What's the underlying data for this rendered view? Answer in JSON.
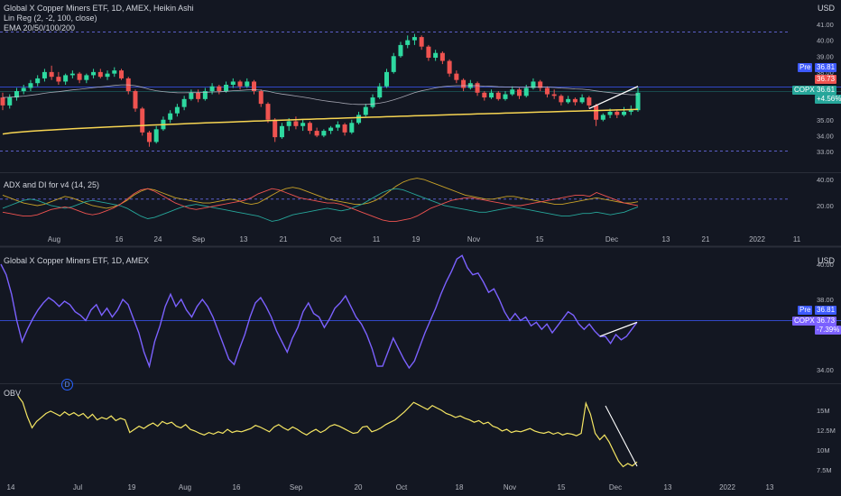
{
  "top": {
    "title": "Global X Copper Miners ETF, 1D, AMEX, Heikin Ashi",
    "indicators": [
      "Lin Reg (2, -2, 100, close)",
      "EMA 20/50/100/200"
    ],
    "currency": "USD",
    "y_ticks": [
      "41.00",
      "40.00",
      "39.00",
      "38.00",
      "37.00",
      "36.00",
      "35.00",
      "34.00",
      "33.00"
    ],
    "x_ticks": [
      "Aug",
      "16",
      "24",
      "Sep",
      "13",
      "21",
      "Oct",
      "11",
      "19",
      "Nov",
      "15",
      "Dec",
      "13",
      "21",
      "2022",
      "11"
    ],
    "tags": {
      "pre_label": "Pre",
      "pre_value": "36.81",
      "last_value": "36.73",
      "ticker": "COPX",
      "ticker_value": "36.61",
      "change": "+4.56%"
    },
    "colors": {
      "up": "#26a69a",
      "up_bright": "#2ed9a0",
      "down": "#ef5350",
      "ema_long": "#f7d552",
      "ema_mid": "#c9c9d6",
      "reg_line": "#ffffff"
    }
  },
  "adx": {
    "label": "ADX and DI for v4 (14, 25)",
    "y_ticks": [
      "40.00",
      "20.00"
    ],
    "colors": {
      "adx": "#c9a227",
      "di_plus": "#26a69a",
      "di_minus": "#ef5350"
    }
  },
  "bottom": {
    "title": "Global X Copper Miners ETF, 1D, AMEX",
    "currency": "USD",
    "y_ticks": [
      "40.00",
      "38.00",
      "36.00",
      "34.00"
    ],
    "tags": {
      "pre_label": "Pre",
      "pre_value": "36.81",
      "ticker": "COPX",
      "ticker_value": "36.73",
      "change": "-7.39%"
    },
    "marker": "D",
    "line_color": "#7b61ff"
  },
  "obv": {
    "label": "OBV",
    "y_ticks": [
      "15M",
      "12.5M",
      "10M",
      "7.5M"
    ],
    "line_color": "#f5e663"
  },
  "bottom_x_ticks": [
    "14",
    "Jul",
    "19",
    "Aug",
    "16",
    "Sep",
    "20",
    "Oct",
    "18",
    "Nov",
    "15",
    "Dec",
    "13",
    "2022",
    "13"
  ],
  "chart_data": [
    {
      "type": "candlestick",
      "title": "Global X Copper Miners ETF, 1D, AMEX, Heikin Ashi",
      "ylim": [
        32.6,
        41.2
      ],
      "candles_ohlc": [
        [
          36.4,
          36.7,
          35.6,
          35.9
        ],
        [
          35.9,
          36.6,
          35.7,
          36.4
        ],
        [
          36.4,
          37.0,
          36.2,
          36.8
        ],
        [
          36.8,
          37.2,
          36.6,
          37.0
        ],
        [
          37.0,
          37.5,
          36.8,
          37.3
        ],
        [
          37.3,
          37.8,
          37.1,
          37.6
        ],
        [
          37.6,
          38.2,
          37.4,
          38.0
        ],
        [
          38.0,
          38.4,
          37.5,
          37.7
        ],
        [
          37.7,
          38.0,
          37.2,
          37.4
        ],
        [
          37.4,
          37.9,
          37.2,
          37.8
        ],
        [
          37.8,
          38.1,
          37.6,
          37.9
        ],
        [
          37.9,
          38.0,
          37.3,
          37.5
        ],
        [
          37.5,
          37.9,
          37.3,
          37.8
        ],
        [
          37.8,
          38.2,
          37.6,
          38.0
        ],
        [
          38.0,
          38.2,
          37.6,
          37.7
        ],
        [
          37.7,
          38.1,
          37.5,
          37.9
        ],
        [
          37.9,
          38.3,
          37.7,
          38.1
        ],
        [
          38.1,
          38.2,
          37.5,
          37.6
        ],
        [
          37.6,
          37.7,
          36.6,
          36.8
        ],
        [
          36.8,
          36.9,
          35.5,
          35.7
        ],
        [
          35.7,
          35.8,
          34.0,
          34.2
        ],
        [
          34.2,
          34.3,
          33.3,
          33.6
        ],
        [
          33.6,
          34.6,
          33.5,
          34.4
        ],
        [
          34.4,
          35.2,
          34.3,
          35.0
        ],
        [
          35.0,
          35.6,
          34.8,
          35.4
        ],
        [
          35.4,
          36.0,
          35.2,
          35.8
        ],
        [
          35.8,
          36.5,
          35.6,
          36.3
        ],
        [
          36.3,
          36.9,
          36.2,
          36.7
        ],
        [
          36.7,
          36.9,
          36.1,
          36.3
        ],
        [
          36.3,
          37.0,
          36.2,
          36.8
        ],
        [
          36.8,
          37.3,
          36.6,
          37.1
        ],
        [
          37.1,
          37.2,
          36.6,
          36.8
        ],
        [
          36.8,
          37.4,
          36.7,
          37.2
        ],
        [
          37.2,
          37.6,
          37.0,
          37.4
        ],
        [
          37.4,
          37.5,
          36.9,
          37.1
        ],
        [
          37.1,
          37.6,
          37.0,
          37.4
        ],
        [
          37.4,
          37.5,
          36.6,
          36.8
        ],
        [
          36.8,
          36.9,
          35.8,
          36.0
        ],
        [
          36.0,
          36.1,
          34.8,
          35.0
        ],
        [
          35.0,
          35.1,
          33.6,
          33.9
        ],
        [
          33.9,
          34.8,
          33.8,
          34.6
        ],
        [
          34.6,
          35.1,
          34.3,
          34.9
        ],
        [
          34.9,
          35.2,
          34.4,
          34.6
        ],
        [
          34.6,
          35.0,
          34.3,
          34.8
        ],
        [
          34.8,
          34.9,
          34.1,
          34.3
        ],
        [
          34.3,
          34.5,
          33.9,
          34.0
        ],
        [
          34.0,
          34.4,
          33.9,
          34.3
        ],
        [
          34.3,
          34.6,
          34.1,
          34.5
        ],
        [
          34.5,
          34.9,
          34.3,
          34.7
        ],
        [
          34.7,
          34.8,
          34.0,
          34.2
        ],
        [
          34.2,
          35.0,
          34.1,
          34.8
        ],
        [
          34.8,
          35.5,
          34.7,
          35.3
        ],
        [
          35.3,
          36.0,
          35.2,
          35.8
        ],
        [
          35.8,
          36.6,
          35.7,
          36.4
        ],
        [
          36.4,
          37.3,
          36.3,
          37.1
        ],
        [
          37.1,
          38.2,
          37.0,
          38.0
        ],
        [
          38.0,
          39.2,
          37.9,
          39.0
        ],
        [
          39.0,
          39.9,
          38.9,
          39.7
        ],
        [
          39.7,
          40.3,
          39.5,
          40.0
        ],
        [
          40.0,
          40.4,
          39.7,
          40.2
        ],
        [
          40.2,
          40.3,
          39.4,
          39.6
        ],
        [
          39.6,
          39.7,
          38.7,
          38.9
        ],
        [
          38.9,
          39.4,
          38.7,
          39.2
        ],
        [
          39.2,
          39.3,
          38.5,
          38.7
        ],
        [
          38.7,
          38.8,
          37.7,
          37.9
        ],
        [
          37.9,
          38.1,
          37.3,
          37.5
        ],
        [
          37.5,
          37.6,
          36.8,
          37.0
        ],
        [
          37.0,
          37.5,
          36.9,
          37.3
        ],
        [
          37.3,
          37.4,
          36.5,
          36.7
        ],
        [
          36.7,
          36.8,
          36.2,
          36.4
        ],
        [
          36.4,
          36.9,
          36.3,
          36.7
        ],
        [
          36.7,
          36.8,
          36.2,
          36.3
        ],
        [
          36.3,
          36.8,
          36.2,
          36.6
        ],
        [
          36.6,
          37.1,
          36.5,
          36.9
        ],
        [
          36.9,
          37.0,
          36.3,
          36.5
        ],
        [
          36.5,
          37.2,
          36.4,
          37.0
        ],
        [
          37.0,
          37.6,
          36.9,
          37.4
        ],
        [
          37.4,
          37.5,
          36.8,
          37.0
        ],
        [
          37.0,
          37.1,
          36.4,
          36.6
        ],
        [
          36.6,
          36.9,
          36.3,
          36.5
        ],
        [
          36.5,
          36.6,
          35.9,
          36.1
        ],
        [
          36.1,
          36.5,
          36.0,
          36.3
        ],
        [
          36.3,
          36.4,
          35.9,
          36.1
        ],
        [
          36.1,
          36.6,
          36.0,
          36.4
        ],
        [
          36.4,
          36.5,
          35.7,
          35.9
        ],
        [
          35.9,
          36.0,
          34.6,
          35.0
        ],
        [
          35.0,
          35.4,
          34.9,
          35.3
        ],
        [
          35.3,
          35.7,
          35.1,
          35.5
        ],
        [
          35.5,
          35.6,
          35.1,
          35.3
        ],
        [
          35.3,
          35.8,
          35.2,
          35.5
        ],
        [
          35.5,
          35.9,
          35.3,
          35.6
        ],
        [
          35.6,
          37.0,
          35.5,
          36.7
        ]
      ]
    },
    {
      "type": "line",
      "title": "ADX and DI for v4 (14, 25)",
      "ylim": [
        0,
        44
      ],
      "series": [
        {
          "values": [
            28,
            26,
            24,
            22,
            21,
            20,
            21,
            23,
            25,
            27,
            26,
            24,
            22,
            20,
            19,
            18,
            19,
            21,
            24,
            28,
            31,
            33,
            32,
            30,
            28,
            26,
            25,
            24,
            23,
            22,
            22,
            23,
            24,
            25,
            24,
            22,
            21,
            22,
            25,
            28,
            31,
            33,
            34,
            33,
            31,
            29,
            27,
            25,
            24,
            23,
            22,
            21,
            21,
            22,
            24,
            27,
            31,
            35,
            38,
            40,
            41,
            40,
            38,
            36,
            34,
            32,
            30,
            28,
            27,
            26,
            25,
            25,
            26,
            27,
            27,
            26,
            25,
            24,
            23,
            22,
            21,
            21,
            22,
            23,
            24,
            25,
            26,
            25,
            24,
            23,
            22,
            22,
            23
          ]
        },
        {
          "values": [
            18,
            20,
            22,
            24,
            25,
            24,
            22,
            20,
            19,
            18,
            19,
            21,
            23,
            24,
            23,
            22,
            21,
            20,
            18,
            15,
            12,
            10,
            11,
            13,
            15,
            17,
            19,
            20,
            21,
            20,
            19,
            18,
            17,
            16,
            15,
            14,
            13,
            12,
            10,
            8,
            9,
            11,
            13,
            14,
            15,
            16,
            17,
            18,
            17,
            16,
            17,
            19,
            21,
            24,
            27,
            30,
            32,
            33,
            32,
            30,
            28,
            26,
            24,
            22,
            20,
            19,
            18,
            17,
            16,
            15,
            15,
            16,
            17,
            18,
            19,
            18,
            17,
            16,
            15,
            14,
            13,
            12,
            12,
            13,
            14,
            14,
            15,
            14,
            13,
            14,
            15,
            17,
            19
          ]
        },
        {
          "values": [
            15,
            14,
            13,
            12,
            12,
            13,
            15,
            17,
            18,
            19,
            18,
            16,
            14,
            13,
            14,
            16,
            18,
            21,
            25,
            29,
            32,
            33,
            31,
            28,
            25,
            22,
            20,
            18,
            17,
            18,
            19,
            20,
            21,
            22,
            23,
            24,
            26,
            29,
            31,
            33,
            32,
            30,
            28,
            26,
            25,
            24,
            23,
            22,
            22,
            21,
            19,
            17,
            15,
            13,
            11,
            9,
            8,
            8,
            9,
            10,
            12,
            15,
            18,
            20,
            22,
            24,
            25,
            26,
            26,
            25,
            24,
            23,
            22,
            21,
            20,
            20,
            21,
            22,
            23,
            24,
            25,
            26,
            27,
            28,
            28,
            27,
            30,
            28,
            26,
            24,
            22,
            21,
            20
          ]
        }
      ]
    },
    {
      "type": "line",
      "title": "Global X Copper Miners ETF, 1D, AMEX",
      "ylim": [
        33.2,
        40.6
      ],
      "values": [
        40.0,
        39.4,
        38.3,
        36.8,
        35.6,
        36.3,
        36.9,
        37.4,
        37.8,
        38.1,
        37.9,
        37.6,
        37.9,
        37.7,
        37.3,
        37.1,
        36.8,
        37.4,
        37.7,
        37.1,
        37.5,
        37.0,
        37.4,
        38.0,
        37.7,
        36.9,
        36.1,
        35.0,
        34.2,
        35.6,
        36.5,
        37.6,
        38.3,
        37.6,
        38.0,
        37.4,
        37.0,
        37.6,
        38.0,
        37.6,
        37.0,
        36.2,
        35.4,
        34.6,
        34.3,
        35.2,
        36.0,
        37.0,
        37.8,
        38.1,
        37.6,
        37.0,
        36.2,
        35.6,
        35.0,
        35.8,
        36.4,
        37.3,
        37.8,
        37.2,
        37.0,
        36.4,
        36.9,
        37.5,
        37.8,
        38.2,
        37.6,
        37.0,
        36.6,
        36.0,
        35.2,
        34.2,
        34.2,
        35.0,
        35.8,
        35.2,
        34.6,
        34.1,
        34.5,
        35.3,
        36.1,
        36.8,
        37.5,
        38.3,
        39.0,
        39.6,
        40.3,
        40.5,
        39.8,
        39.4,
        39.5,
        39.0,
        38.4,
        38.6,
        38.0,
        37.3,
        36.8,
        37.2,
        36.8,
        37.0,
        36.5,
        36.7,
        36.3,
        36.6,
        36.1,
        36.5,
        36.9,
        37.3,
        37.1,
        36.6,
        36.3,
        36.6,
        36.2,
        35.9,
        35.9,
        35.5,
        36.0,
        35.7,
        35.9,
        36.3,
        36.7
      ]
    },
    {
      "type": "line",
      "title": "OBV",
      "ylim": [
        6.5,
        17
      ],
      "values": [
        16.8,
        16.0,
        14.2,
        12.8,
        13.6,
        14.1,
        14.6,
        14.9,
        14.6,
        14.3,
        14.8,
        14.4,
        14.7,
        14.3,
        14.6,
        14.0,
        14.5,
        13.8,
        14.1,
        13.9,
        14.3,
        13.7,
        14.0,
        13.8,
        12.2,
        12.6,
        13.0,
        12.7,
        13.1,
        13.4,
        13.0,
        13.6,
        13.3,
        13.5,
        13.0,
        12.8,
        13.2,
        12.6,
        12.4,
        12.1,
        11.9,
        12.2,
        12.0,
        12.3,
        12.1,
        12.6,
        12.2,
        12.4,
        12.3,
        12.5,
        12.7,
        13.1,
        12.9,
        12.6,
        12.3,
        12.9,
        13.2,
        12.8,
        12.5,
        12.9,
        12.6,
        12.2,
        11.9,
        12.3,
        12.6,
        12.2,
        12.5,
        13.0,
        13.2,
        13.0,
        12.7,
        12.4,
        12.1,
        12.2,
        12.9,
        13.0,
        12.3,
        12.5,
        12.8,
        13.2,
        13.5,
        13.8,
        14.3,
        14.8,
        15.4,
        16.0,
        15.7,
        15.4,
        15.1,
        15.6,
        15.3,
        15.0,
        14.6,
        14.4,
        14.1,
        14.3,
        14.0,
        13.8,
        13.5,
        13.7,
        13.3,
        13.5,
        13.0,
        12.8,
        12.4,
        12.6,
        12.2,
        12.4,
        12.3,
        12.5,
        12.7,
        12.4,
        12.2,
        12.1,
        12.3,
        12.0,
        12.2,
        11.9,
        12.1,
        12.0,
        11.8,
        12.1,
        15.9,
        14.5,
        12.1,
        11.3,
        11.9,
        11.0,
        9.8,
        8.6,
        7.9,
        8.3,
        8.0,
        8.5
      ]
    }
  ]
}
